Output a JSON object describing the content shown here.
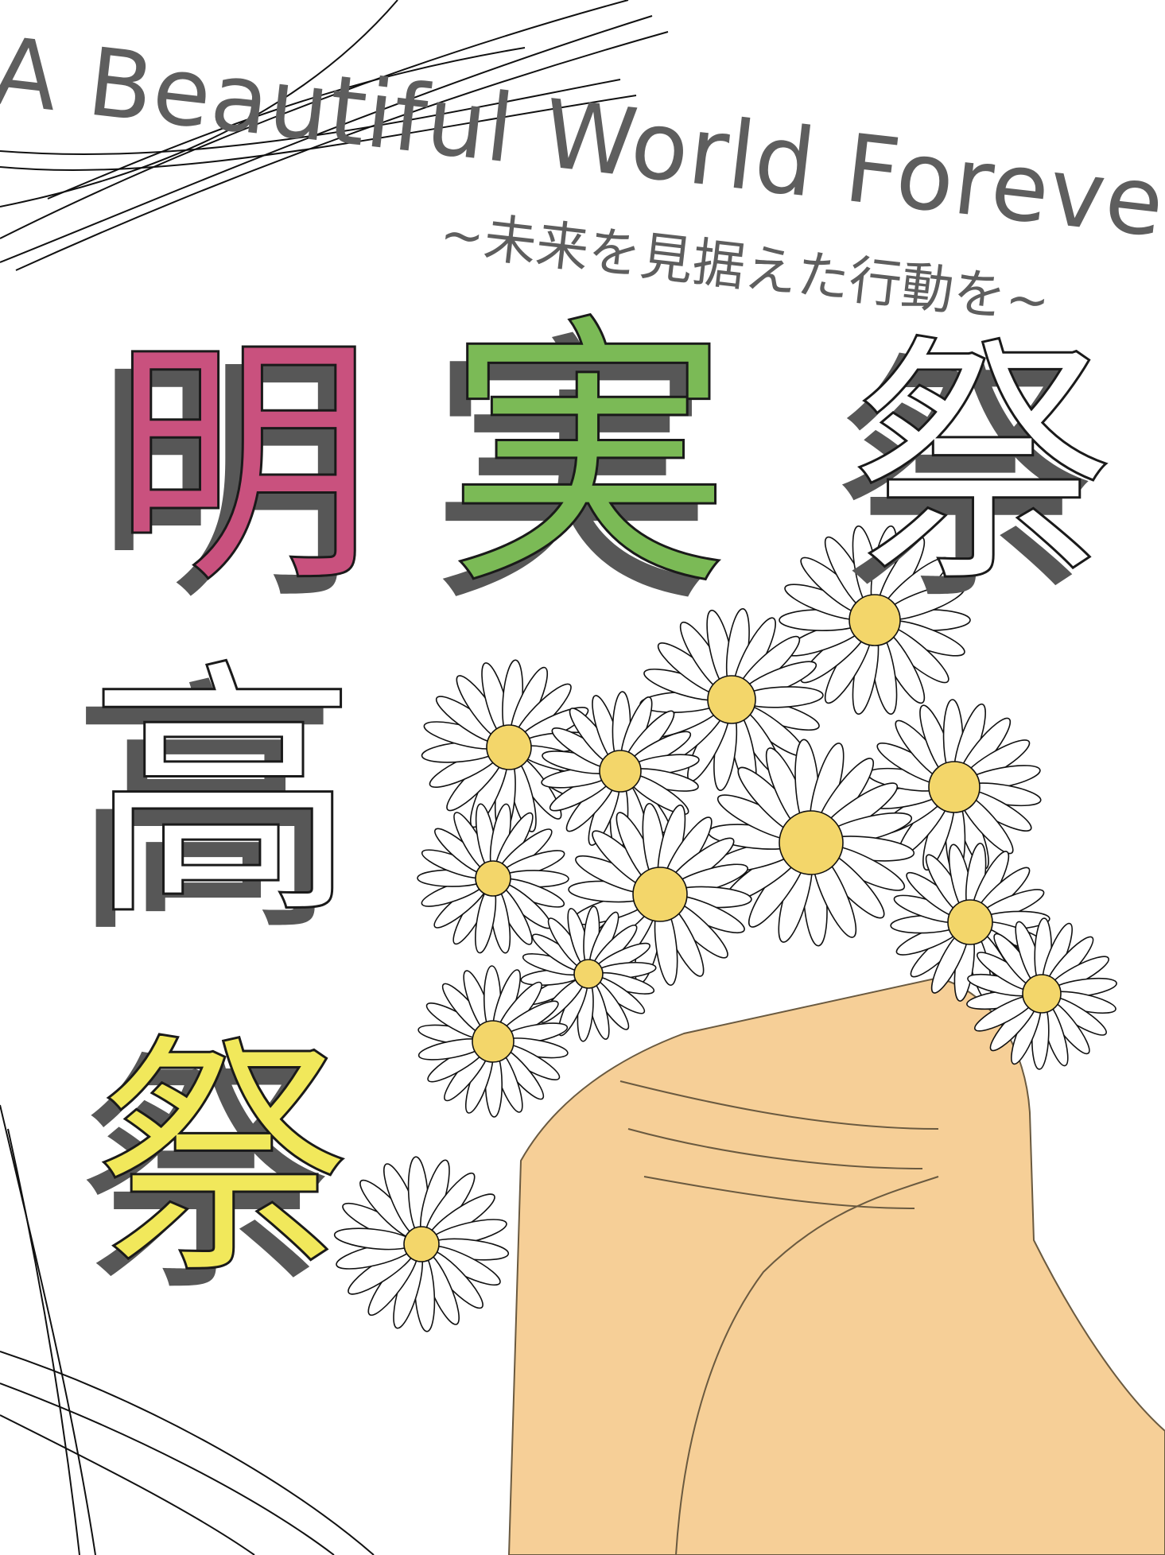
{
  "poster": {
    "headline": "A Beautiful World Forever",
    "subtitle": "~未来を見据えた行動を~",
    "festival_name": {
      "char1": "明",
      "char2": "実",
      "char3": "祭",
      "char4": "高",
      "char5": "祭"
    }
  },
  "colors": {
    "background": "#ffffff",
    "text_gray": "#5e5e5e",
    "shadow_gray": "#575757",
    "pink": "#c9517e",
    "green": "#7bba56",
    "yellow": "#f1e85b",
    "skin": "#f6cf97",
    "flower_center": "#f3d66a",
    "ink": "#1a1a1a"
  }
}
